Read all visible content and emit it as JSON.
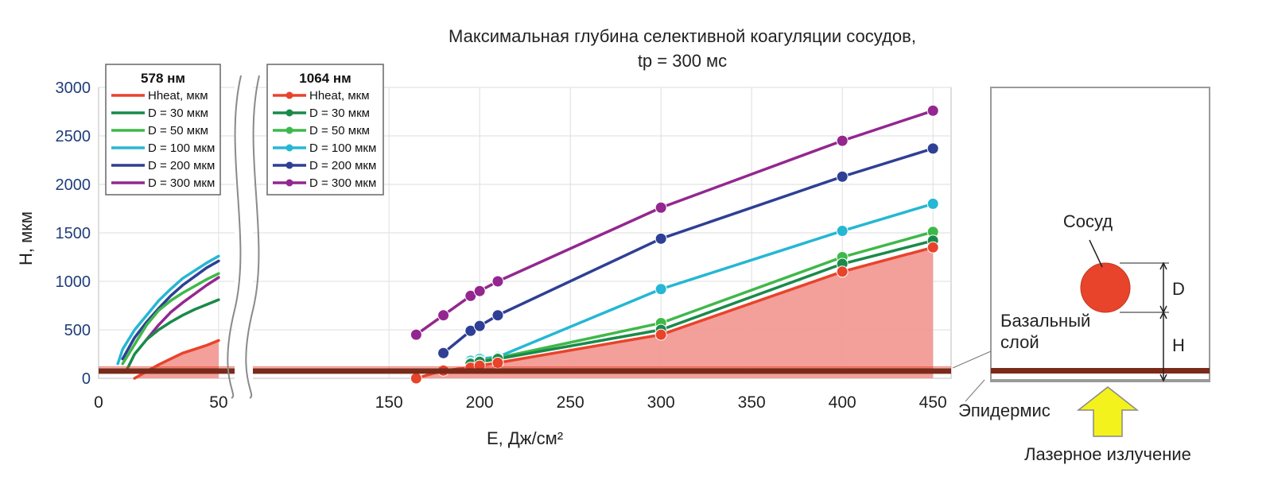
{
  "chart_data": {
    "type": "line",
    "title": "Максимальная глубина селективной коагуляции сосудов,",
    "subtitle": "tp = 300 мс",
    "xlabel": "E, Дж/см²",
    "ylabel": "H, мкм",
    "xlim": [
      0,
      460
    ],
    "ylim": [
      0,
      3000
    ],
    "x_axis_break": [
      55,
      78
    ],
    "x_ticks": [
      "0",
      "50",
      "150",
      "200",
      "250",
      "300",
      "350",
      "400",
      "450"
    ],
    "y_ticks": [
      "0",
      "500",
      "1000",
      "1500",
      "2000",
      "2500",
      "3000"
    ],
    "grid": true,
    "legend_placement": "top-left",
    "baseline_value": 75,
    "groups": [
      {
        "name": "578 нм",
        "markers": false,
        "series": [
          {
            "name": "Hheat, мкм",
            "color": "#e8432b",
            "filled": true,
            "x": [
              15,
              20,
              25,
              30,
              35,
              40,
              45,
              50
            ],
            "y": [
              0,
              70,
              140,
              200,
              260,
              300,
              340,
              390
            ]
          },
          {
            "name": "D = 30 мкм",
            "color": "#1a8a4a",
            "x": [
              12,
              15,
              20,
              25,
              30,
              35,
              40,
              45,
              50
            ],
            "y": [
              100,
              250,
              400,
              500,
              580,
              650,
              710,
              760,
              810
            ]
          },
          {
            "name": "D = 50 мкм",
            "color": "#3fb84a",
            "x": [
              10,
              15,
              20,
              25,
              30,
              35,
              40,
              45,
              50
            ],
            "y": [
              150,
              350,
              550,
              700,
              800,
              880,
              950,
              1020,
              1080
            ]
          },
          {
            "name": "D = 100 мкм",
            "color": "#25b7d3",
            "x": [
              8,
              10,
              15,
              20,
              25,
              30,
              35,
              40,
              45,
              50
            ],
            "y": [
              150,
              300,
              500,
              650,
              800,
              920,
              1030,
              1110,
              1190,
              1260
            ]
          },
          {
            "name": "D = 200 мкм",
            "color": "#2e3f95",
            "x": [
              10,
              15,
              20,
              25,
              30,
              35,
              40,
              45,
              50
            ],
            "y": [
              200,
              420,
              580,
              720,
              850,
              960,
              1050,
              1140,
              1210
            ]
          },
          {
            "name": "D = 300 мкм",
            "color": "#93278f",
            "x": [
              20,
              25,
              30,
              35,
              40,
              45,
              50
            ],
            "y": [
              400,
              550,
              680,
              780,
              870,
              960,
              1040
            ]
          }
        ]
      },
      {
        "name": "1064 нм",
        "markers": true,
        "series": [
          {
            "name": "Hheat, мкм",
            "color": "#e8432b",
            "filled": true,
            "x": [
              165,
              180,
              195,
              200,
              210,
              300,
              400,
              450
            ],
            "y": [
              0,
              80,
              110,
              130,
              160,
              450,
              1100,
              1350
            ]
          },
          {
            "name": "D = 30 мкм",
            "color": "#1a8a4a",
            "x": [
              195,
              200,
              210,
              300,
              400,
              450
            ],
            "y": [
              150,
              170,
              200,
              500,
              1180,
              1420
            ]
          },
          {
            "name": "D = 50 мкм",
            "color": "#3fb84a",
            "x": [
              195,
              200,
              210,
              300,
              400,
              450
            ],
            "y": [
              160,
              180,
              210,
              570,
              1250,
              1510
            ]
          },
          {
            "name": "D = 100 мкм",
            "color": "#25b7d3",
            "x": [
              195,
              200,
              210,
              300,
              400,
              450
            ],
            "y": [
              180,
              200,
              220,
              920,
              1520,
              1800
            ]
          },
          {
            "name": "D = 200 мкм",
            "color": "#2e3f95",
            "x": [
              180,
              195,
              200,
              210,
              300,
              400,
              450
            ],
            "y": [
              260,
              490,
              540,
              650,
              1440,
              2080,
              2370
            ]
          },
          {
            "name": "D = 300 мкм",
            "color": "#93278f",
            "x": [
              165,
              180,
              195,
              200,
              210,
              300,
              400,
              450
            ],
            "y": [
              450,
              650,
              850,
              900,
              1000,
              1760,
              2450,
              2760
            ]
          }
        ]
      }
    ]
  },
  "diagram": {
    "vessel_label": "Сосуд",
    "diameter_label": "D",
    "depth_label": "H",
    "basal_layer_label_line1": "Базальный",
    "basal_layer_label_line2": "слой",
    "epidermis_label": "Эпидермис",
    "laser_label": "Лазерное излучение",
    "vessel_color": "#e8432b",
    "layer_color": "#7b2a1a",
    "arrow_color": "#f4f21c"
  }
}
